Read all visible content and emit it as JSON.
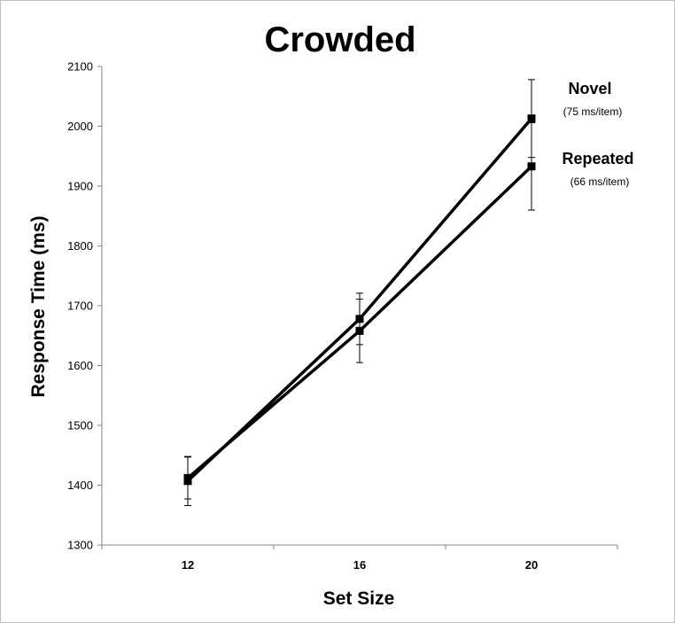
{
  "chart_data": {
    "type": "line",
    "title": "Crowded",
    "xlabel": "Set Size",
    "ylabel": "Response Time (ms)",
    "categories": [
      "12",
      "16",
      "20"
    ],
    "ylim": [
      1300,
      2100
    ],
    "yticks": [
      1300,
      1400,
      1500,
      1600,
      1700,
      1800,
      1900,
      2000,
      2100
    ],
    "grid": false,
    "series": [
      {
        "name": "Novel",
        "note": "(75 ms/item)",
        "values": [
          1407,
          1678,
          2013
        ],
        "error": [
          41,
          43,
          65
        ]
      },
      {
        "name": "Repeated",
        "note": "(66 ms/item)",
        "values": [
          1412,
          1658,
          1933
        ],
        "error": [
          35,
          53,
          73
        ]
      }
    ]
  }
}
